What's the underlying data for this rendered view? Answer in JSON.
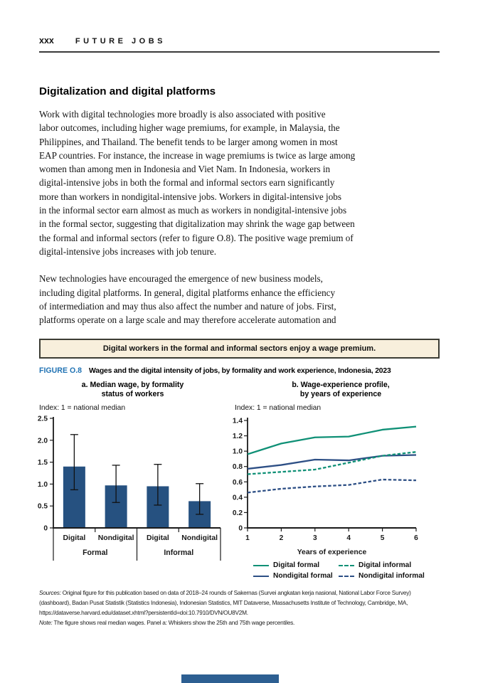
{
  "page": {
    "header": {
      "page_number": "xxx",
      "running_title": "FUTURE JOBS"
    },
    "section_heading": "Digitalization and digital platforms",
    "paragraph_1": "Work with digital technologies more broadly is also associated with positive\nlabor outcomes, including higher wage premiums, for example, in Malaysia, the\nPhilippines, and Thailand. The benefit tends to be larger among women in most\nEAP countries. For instance, the increase in wage premiums is twice as large among\nwomen than among men in Indonesia and Viet Nam. In Indonesia, workers in\ndigital-intensive jobs in both the formal and informal sectors earn significantly\nmore than workers in nondigital-intensive jobs. Workers in digital-intensive jobs\nin the informal sector earn almost as much as workers in nondigital-intensive jobs\nin the formal sector, suggesting that digitalization may shrink the wage gap between\nthe formal and informal sectors (refer to figure O.8). The positive wage premium of\ndigital-intensive jobs increases with job tenure.",
    "paragraph_2": "New technologies have encouraged the emergence of new business models,\nincluding digital platforms. In general, digital platforms enhance the efficiency\nof intermediation and may thus also affect the number and nature of jobs. First,\nplatforms operate on a large scale and may therefore accelerate automation and",
    "key_message": "Digital workers in the formal and informal sectors enjoy a wage premium.",
    "figure": {
      "label": "FIGURE O.8",
      "title": "Wages and the digital intensity of jobs, by formality and work experience, Indonesia, 2023"
    },
    "sources": {
      "prefix": "Sources:",
      "text": " Original figure for this publication based on data of 2018–24 rounds of Sakernas (Survei angkatan kerja nasional, National Labor Force Survey) (dashboard), Badan Pusat Statistik (Statistics Indonesia), Indonesian Statistics, MIT Dataverse, Massachusetts Institute of Technology, Cambridge, MA, https://dataverse.harvard.edu/dataset.xhtml?persistentId=doi:10.7910/DVN/OU8V2M."
    },
    "note": {
      "prefix": "Note:",
      "text": " The figure shows real median wages. Panel a: Whiskers show the 25th and 75th wage percentiles."
    }
  },
  "chart_data": [
    {
      "type": "bar",
      "panel": "a",
      "title": "a. Median wage, by formality\nstatus of workers",
      "axis_note": "Index: 1 = national median",
      "categories": [
        "Digital",
        "Nondigital",
        "Digital",
        "Nondigital"
      ],
      "groups": [
        "Formal",
        "Informal"
      ],
      "values": [
        1.4,
        0.97,
        0.95,
        0.61
      ],
      "whisker_low": [
        0.87,
        0.58,
        0.52,
        0.31
      ],
      "whisker_high": [
        2.13,
        1.43,
        1.45,
        1.01
      ],
      "ylim": [
        0,
        2.5
      ],
      "ytick_step": 0.5,
      "bar_color": "#265180"
    },
    {
      "type": "line",
      "panel": "b",
      "title": "b. Wage-experience profile,\nby years of experience",
      "axis_note": "Index: 1 = national median",
      "xlabel": "Years of experience",
      "x": [
        1,
        2,
        3,
        4,
        5,
        6
      ],
      "ylim": [
        0,
        1.4
      ],
      "ytick_step": 0.2,
      "series": [
        {
          "name": "Digital formal",
          "values": [
            0.96,
            1.1,
            1.18,
            1.19,
            1.28,
            1.32
          ],
          "color": "#0f9076",
          "dash": false
        },
        {
          "name": "Nondigital formal",
          "values": [
            0.77,
            0.82,
            0.89,
            0.88,
            0.94,
            0.95
          ],
          "color": "#2d4f85",
          "dash": false
        },
        {
          "name": "Digital informal",
          "values": [
            0.7,
            0.73,
            0.76,
            0.85,
            0.94,
            0.99
          ],
          "color": "#0f9076",
          "dash": true
        },
        {
          "name": "Nondigital informal",
          "values": [
            0.46,
            0.51,
            0.54,
            0.56,
            0.63,
            0.62
          ],
          "color": "#2d4f85",
          "dash": true
        }
      ],
      "legend_position": "below"
    }
  ],
  "colors": {
    "figure_label_blue": "#2173b4",
    "bar_navy": "#265180",
    "line_navy": "#2d4f85",
    "line_teal": "#0f9076",
    "key_box_background": "#f8efdc",
    "key_box_border": "#3c3c34",
    "bottom_bar_blue": "#2d5f92"
  }
}
